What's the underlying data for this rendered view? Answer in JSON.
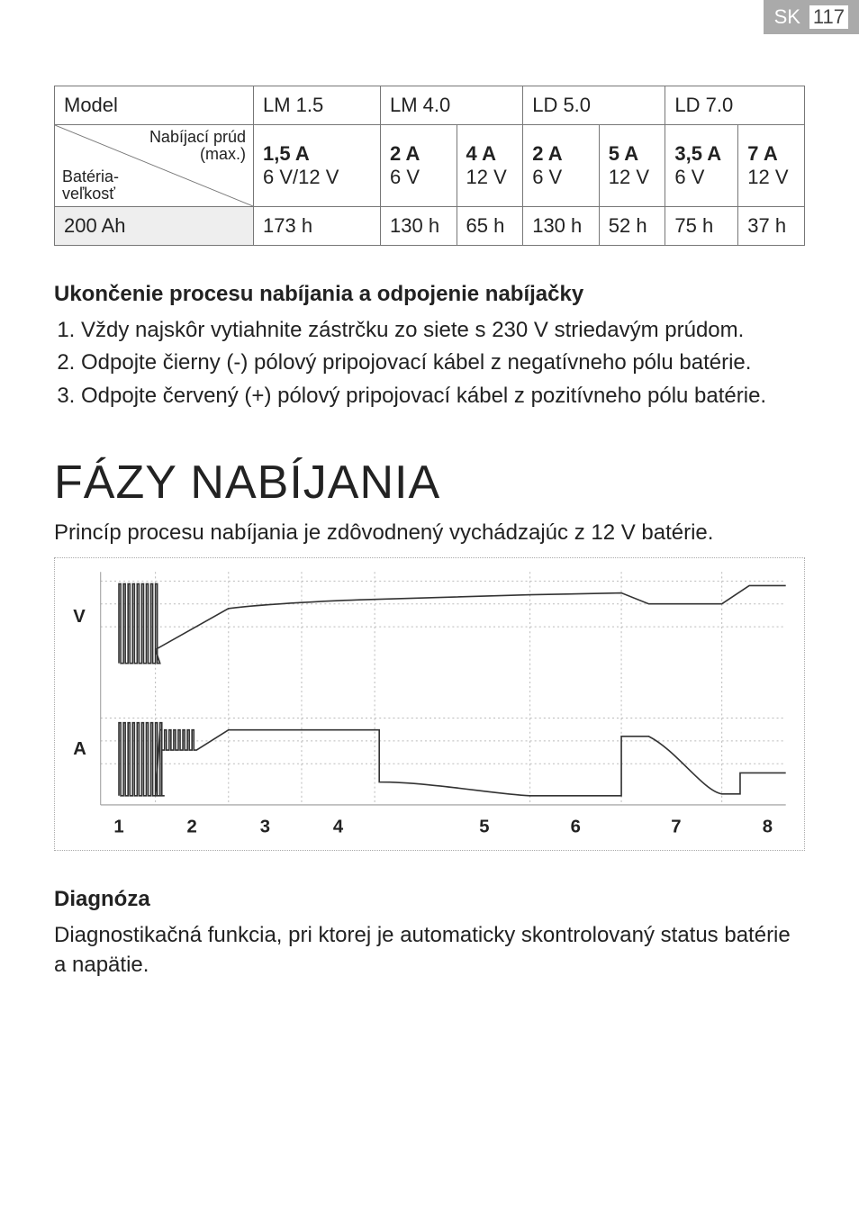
{
  "header": {
    "lang": "SK",
    "page": "117"
  },
  "table": {
    "head": {
      "model": "Model",
      "diag_top": "Nabíjací prúd",
      "diag_mid": "(max.)",
      "diag_bot1": "Batéria-",
      "diag_bot2": "veľkosť",
      "cols": [
        "LM 1.5",
        "LM 4.0",
        "LD 5.0",
        "LD 7.0"
      ]
    },
    "row1": {
      "c1a": "1,5 A",
      "c1b": "6 V/12 V",
      "c2a": "2 A",
      "c2b": "6 V",
      "c3a": "4 A",
      "c3b": "12 V",
      "c4a": "2 A",
      "c4b": "6 V",
      "c5a": "5 A",
      "c5b": "12 V",
      "c6a": "3,5 A",
      "c6b": "6 V",
      "c7a": "7 A",
      "c7b": "12 V"
    },
    "row2": {
      "label": "200 Ah",
      "v": [
        "173 h",
        "130 h",
        "65 h",
        "130 h",
        "52 h",
        "75 h",
        "37 h"
      ]
    }
  },
  "section1": {
    "title": "Ukončenie procesu nabíjania a odpojenie nabíjačky",
    "steps": [
      "Vždy najskôr vytiahnite zástrčku zo siete s 230 V striedavým prúdom.",
      "Odpojte čierny (-) pólový pripojovací kábel z negatívneho pólu batérie.",
      "Odpojte červený (+) pólový pripojovací kábel z pozitívneho pólu batérie."
    ]
  },
  "bigTitle": "FÁZY NABÍJANIA",
  "intro": "Princíp procesu nabíjania je zdôvodnený vychádzajúc z 12 V batérie.",
  "chart": {
    "axisV": "V",
    "axisA": "A",
    "xlabels": [
      "1",
      "2",
      "3",
      "4",
      "5",
      "6",
      "7",
      "8"
    ],
    "colors": {
      "grid": "#bbbbbb",
      "divider": "#999999",
      "line": "#333333",
      "text": "#222222"
    }
  },
  "section2": {
    "title": "Diagnóza",
    "body": "Diagnostikačná funkcia, pri ktorej je automaticky skontrolovaný status batérie a napätie."
  }
}
